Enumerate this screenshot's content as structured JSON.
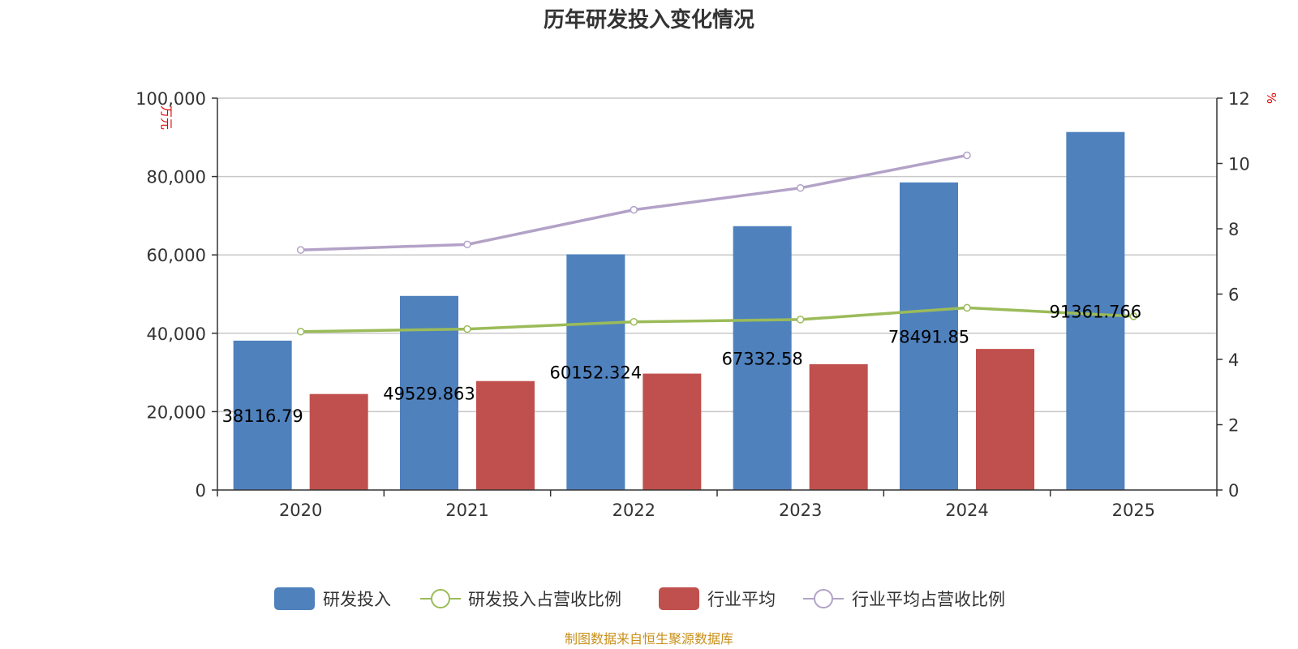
{
  "source_note": "制图数据来自恒生聚源数据库",
  "colors": {
    "rd_bar": "#4f81bd",
    "industry_bar": "#c0504d",
    "rd_ratio_line": "#9bbb59",
    "industry_ratio_line": "#b3a2c7",
    "source_text": "#c8901a",
    "unit_text": "#e00000"
  },
  "chart_data": {
    "type": "bar",
    "title": "历年研发投入变化情况",
    "categories": [
      "2020",
      "2021",
      "2022",
      "2023",
      "2024",
      "2025"
    ],
    "y_left": {
      "unit": "万元",
      "ylim": [
        0,
        100000
      ],
      "ticks": [
        "0",
        "20,000",
        "40,000",
        "60,000",
        "80,000",
        "100,000"
      ],
      "tick_values": [
        0,
        20000,
        40000,
        60000,
        80000,
        100000
      ]
    },
    "y_right": {
      "unit": "%",
      "ylim": [
        0,
        12
      ],
      "ticks": [
        "0",
        "2",
        "4",
        "6",
        "8",
        "10",
        "12"
      ],
      "tick_values": [
        0,
        2,
        4,
        6,
        8,
        10,
        12
      ]
    },
    "grid": true,
    "legend_position": "bottom",
    "series": [
      {
        "name": "研发投入",
        "type": "bar",
        "axis": "left",
        "values": [
          38116.79,
          49529.863,
          60152.324,
          67332.58,
          78491.85,
          91361.766
        ],
        "labels": [
          "38116.79",
          "49529.863",
          "60152.324",
          "67332.58",
          "78491.85",
          "91361.766"
        ]
      },
      {
        "name": "研发投入占营收比例",
        "type": "line",
        "axis": "right",
        "values": [
          4.85,
          4.93,
          5.15,
          5.22,
          5.58,
          5.32
        ]
      },
      {
        "name": "行业平均",
        "type": "bar",
        "axis": "left",
        "values": [
          24500,
          27800,
          29700,
          32100,
          36000,
          null
        ]
      },
      {
        "name": "行业平均占营收比例",
        "type": "line",
        "axis": "right",
        "values": [
          7.35,
          7.52,
          8.58,
          9.25,
          10.25,
          null
        ]
      }
    ]
  }
}
